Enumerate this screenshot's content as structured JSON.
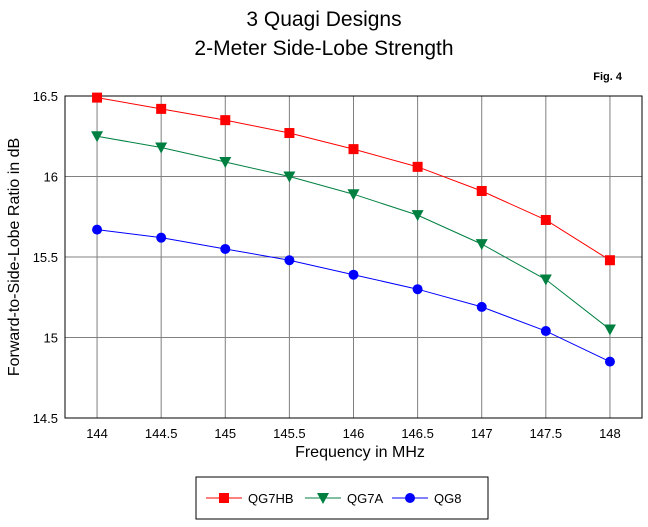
{
  "chart_data": {
    "type": "line",
    "title": "3 Quagi Designs",
    "subtitle": "2-Meter Side-Lobe Strength",
    "figure_label": "Fig. 4",
    "xlabel": "Frequency in MHz",
    "ylabel": "Forward-to-Side-Lobe Ratio in dB",
    "xlim": [
      143.75,
      148.25
    ],
    "ylim": [
      14.5,
      16.5
    ],
    "x": [
      144,
      144.5,
      145,
      145.5,
      146,
      146.5,
      147,
      147.5,
      148
    ],
    "x_tick_labels": [
      "144",
      "144.5",
      "145",
      "145.5",
      "146",
      "146.5",
      "147",
      "147.5",
      "148"
    ],
    "y_ticks": [
      14.5,
      15,
      15.5,
      16,
      16.5
    ],
    "y_tick_labels": [
      "14.5",
      "15",
      "15.5",
      "16",
      "16.5"
    ],
    "grid": true,
    "legend_position": "bottom-center",
    "series": [
      {
        "name": "QG7HB",
        "color": "#ff0000",
        "marker": "square",
        "values": [
          16.49,
          16.42,
          16.35,
          16.27,
          16.17,
          16.06,
          15.91,
          15.73,
          15.48
        ]
      },
      {
        "name": "QG7A",
        "color": "#008040",
        "marker": "triangle-down",
        "values": [
          16.25,
          16.18,
          16.09,
          16.0,
          15.89,
          15.76,
          15.58,
          15.36,
          15.05
        ]
      },
      {
        "name": "QG8",
        "color": "#0000ff",
        "marker": "circle",
        "values": [
          15.67,
          15.62,
          15.55,
          15.48,
          15.39,
          15.3,
          15.19,
          15.04,
          14.85
        ]
      }
    ]
  }
}
